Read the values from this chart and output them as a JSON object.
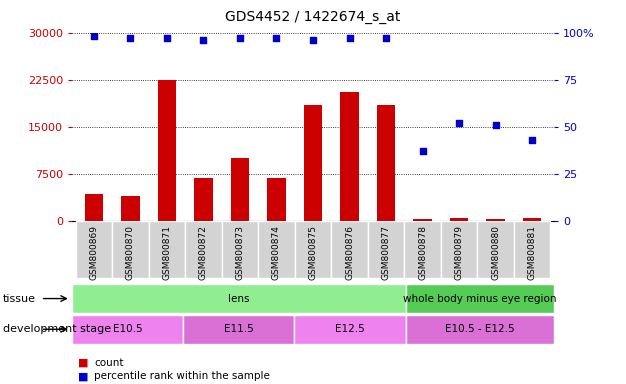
{
  "title": "GDS4452 / 1422674_s_at",
  "samples": [
    "GSM800869",
    "GSM800870",
    "GSM800871",
    "GSM800872",
    "GSM800873",
    "GSM800874",
    "GSM800875",
    "GSM800876",
    "GSM800877",
    "GSM800878",
    "GSM800879",
    "GSM800880",
    "GSM800881"
  ],
  "counts": [
    4200,
    3900,
    22500,
    6800,
    10000,
    6900,
    18500,
    20500,
    18500,
    300,
    450,
    350,
    400
  ],
  "percentile": [
    98,
    97,
    97,
    96,
    97,
    97,
    96,
    97,
    97,
    37,
    52,
    51,
    43
  ],
  "tissue_groups": [
    {
      "label": "lens",
      "start": 0,
      "end": 9,
      "color": "#90EE90"
    },
    {
      "label": "whole body minus eye region",
      "start": 9,
      "end": 13,
      "color": "#55CC55"
    }
  ],
  "dev_stage_groups": [
    {
      "label": "E10.5",
      "start": 0,
      "end": 3,
      "color": "#EE82EE"
    },
    {
      "label": "E11.5",
      "start": 3,
      "end": 6,
      "color": "#DA70D6"
    },
    {
      "label": "E12.5",
      "start": 6,
      "end": 9,
      "color": "#EE82EE"
    },
    {
      "label": "E10.5 - E12.5",
      "start": 9,
      "end": 13,
      "color": "#DA70D6"
    }
  ],
  "bar_color": "#CC0000",
  "dot_color": "#0000CC",
  "left_ylim": [
    0,
    30000
  ],
  "right_ylim": [
    0,
    100
  ],
  "left_yticks": [
    0,
    7500,
    15000,
    22500,
    30000
  ],
  "right_yticks": [
    0,
    25,
    50,
    75,
    100
  ],
  "left_yticklabels": [
    "0",
    "7500",
    "15000",
    "22500",
    "30000"
  ],
  "right_yticklabels": [
    "0",
    "25",
    "50",
    "75",
    "100%"
  ],
  "left_tick_color": "#CC0000",
  "right_tick_color": "#0000CC",
  "bg_color": "#FFFFFF",
  "grid_color": "#000000",
  "tissue_label": "tissue",
  "dev_label": "development stage",
  "legend_count": "count",
  "legend_pct": "percentile rank within the sample",
  "xtick_bg": "#D3D3D3",
  "xtick_border": "#AAAAAA"
}
